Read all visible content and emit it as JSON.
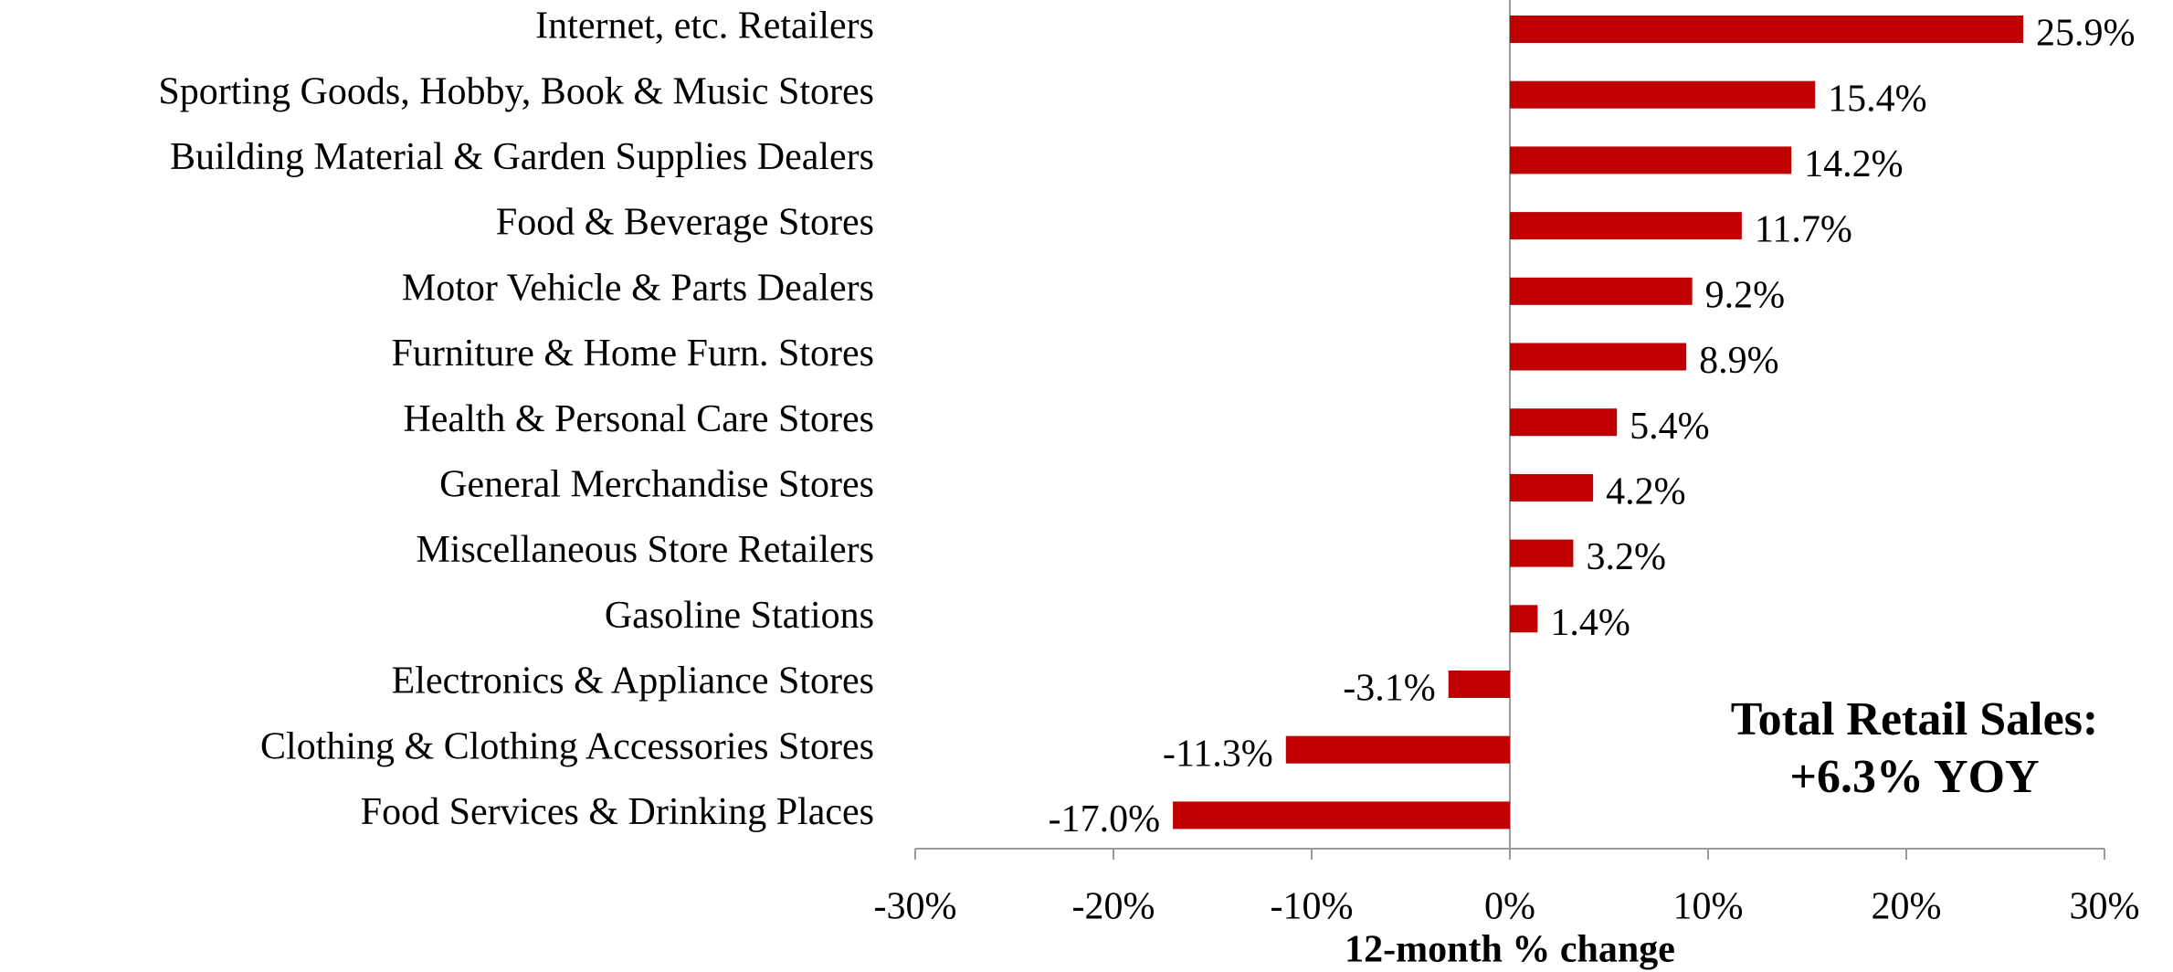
{
  "chart_data": {
    "type": "barh",
    "categories": [
      "Internet, etc. Retailers",
      "Sporting Goods, Hobby, Book & Music Stores",
      "Building Material & Garden Supplies Dealers",
      "Food & Beverage Stores",
      "Motor Vehicle & Parts Dealers",
      "Furniture & Home Furn. Stores",
      "Health & Personal Care Stores",
      "General Merchandise Stores",
      "Miscellaneous Store Retailers",
      "Gasoline Stations",
      "Electronics & Appliance Stores",
      "Clothing & Clothing Accessories Stores",
      "Food Services & Drinking Places"
    ],
    "values": [
      25.9,
      15.4,
      14.2,
      11.7,
      9.2,
      8.9,
      5.4,
      4.2,
      3.2,
      1.4,
      -3.1,
      -11.3,
      -17.0
    ],
    "value_labels": [
      "25.9%",
      "15.4%",
      "14.2%",
      "11.7%",
      "9.2%",
      "8.9%",
      "5.4%",
      "4.2%",
      "3.2%",
      "1.4%",
      "-3.1%",
      "-11.3%",
      "-17.0%"
    ],
    "color": "#c00000",
    "xlim": [
      -30,
      30
    ],
    "xticks": [
      {
        "value": -30,
        "label": "-30%"
      },
      {
        "value": -20,
        "label": "-20%"
      },
      {
        "value": -10,
        "label": "-10%"
      },
      {
        "value": 0,
        "label": "0%"
      },
      {
        "value": 10,
        "label": "10%"
      },
      {
        "value": 20,
        "label": "20%"
      },
      {
        "value": 30,
        "label": "30%"
      }
    ],
    "x_label": "12-month % change",
    "annotation": [
      "Total Retail Sales:",
      "+6.3% YOY"
    ]
  }
}
